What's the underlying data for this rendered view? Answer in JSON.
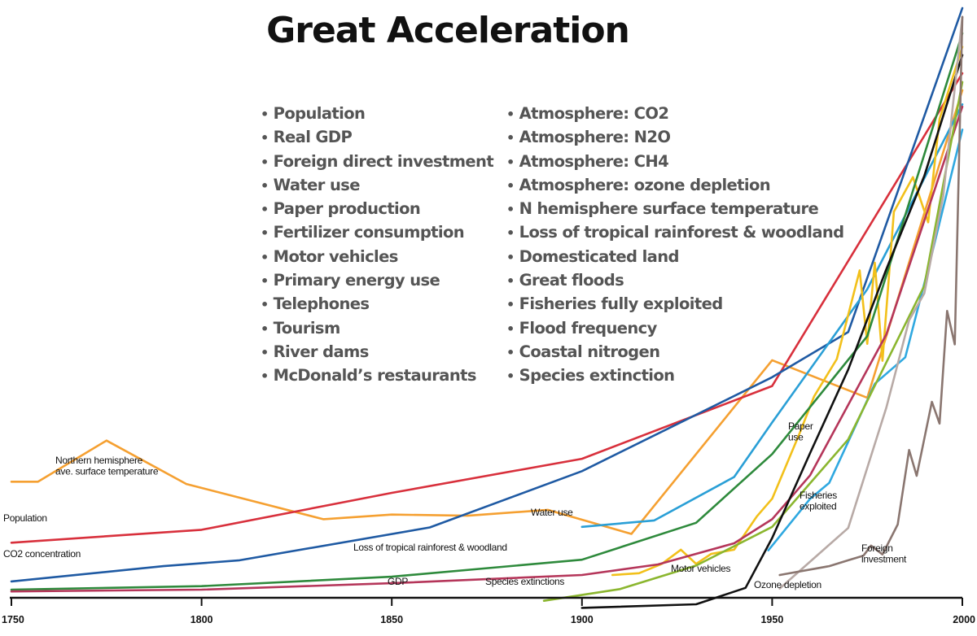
{
  "chart_data": {
    "type": "line",
    "title": "Great Acceleration",
    "indicators_left": [
      "Population",
      "Real GDP",
      "Foreign direct investment",
      "Water use",
      "Paper production",
      "Fertilizer consumption",
      "Motor vehicles",
      "Primary energy use",
      "Telephones",
      "Tourism",
      "River dams",
      "McDonald’s restaurants"
    ],
    "indicators_right": [
      "Atmosphere: CO2",
      "Atmosphere: N2O",
      "Atmosphere: CH4",
      "Atmosphere: ozone depletion",
      "N hemisphere surface temperature",
      "Loss of tropical rainforest & woodland",
      "Domesticated land",
      "Great floods",
      "Fisheries fully exploited",
      "Flood frequency",
      "Coastal nitrogen",
      "Species extinction"
    ],
    "x_ticks": [
      1750,
      1800,
      1850,
      1900,
      1950,
      2000
    ],
    "xlim": [
      1750,
      2000
    ],
    "ylim": [
      0,
      100
    ],
    "grid": false,
    "series": [
      {
        "name": "Northern hemisphere ave. surface temperature",
        "color": "#f5a031",
        "x": [
          1750,
          1757,
          1775,
          1796,
          1832,
          1850,
          1870,
          1891,
          1913,
          1950,
          1975,
          2000
        ],
        "y": [
          19.3,
          19.3,
          26.3,
          18.9,
          12.9,
          13.7,
          13.5,
          14.5,
          10.4,
          40.0,
          33.6,
          86.0
        ],
        "label_lines": [
          "Northern hemisphere",
          "ave. surface temperature"
        ]
      },
      {
        "name": "Population",
        "color": "#d8303c",
        "x": [
          1750,
          1800,
          1850,
          1900,
          1950,
          2000
        ],
        "y": [
          8.9,
          11.1,
          17.4,
          23.2,
          35.6,
          88.9
        ],
        "label_lines": [
          "Population"
        ]
      },
      {
        "name": "CO2 concentration",
        "color": "#1f5aa3",
        "x": [
          1750,
          1790,
          1810,
          1860,
          1900,
          1950,
          1970,
          2000
        ],
        "y": [
          2.3,
          4.9,
          5.9,
          11.5,
          21.1,
          37.1,
          44.8,
          100
        ],
        "label_lines": [
          "CO2 concentration"
        ]
      },
      {
        "name": "Water use",
        "color": "#2a9fd6",
        "x": [
          1900,
          1919,
          1940,
          1950,
          1975,
          2000
        ],
        "y": [
          11.6,
          12.7,
          20.1,
          29.4,
          52.1,
          83.6
        ],
        "label_lines": [
          "Water use"
        ]
      },
      {
        "name": "Paper use",
        "color": "#f2c01a",
        "x": [
          1908,
          1915,
          1921,
          1926,
          1930,
          1934,
          1940,
          1946,
          1950,
          1957,
          1961,
          1967,
          1973,
          1975,
          1977,
          1979,
          1982,
          1987,
          1991,
          1994,
          2000
        ],
        "y": [
          3.4,
          3.7,
          5.3,
          7.7,
          5.3,
          7.0,
          7.7,
          13.4,
          16.4,
          27.2,
          33.8,
          40.2,
          55.3,
          42.8,
          56.6,
          39.9,
          65.3,
          71.2,
          63.5,
          81.1,
          93.4
        ],
        "label_lines": [
          "Paper",
          "use"
        ]
      },
      {
        "name": "Fisheries exploited",
        "color": "#2fa8e0",
        "x": [
          1949,
          1960,
          1965,
          1970,
          1977,
          1985,
          1992,
          2000
        ],
        "y": [
          7.6,
          16.4,
          19.1,
          26.1,
          36.0,
          40.5,
          58.1,
          79.3
        ],
        "label_lines": [
          "Fisheries",
          "exploited"
        ]
      },
      {
        "name": "Loss of tropical rainforest & woodland",
        "color": "#2e8a3c",
        "x": [
          1750,
          1800,
          1850,
          1900,
          1930,
          1950,
          1975,
          2000
        ],
        "y": [
          0.9,
          1.5,
          3.1,
          6.0,
          12.3,
          24.0,
          44.1,
          95.7
        ],
        "label_lines": [
          "Loss of tropical rainforest & woodland"
        ]
      },
      {
        "name": "GDP",
        "color": "#b5365a",
        "x": [
          1750,
          1800,
          1850,
          1900,
          1920,
          1940,
          1950,
          1960,
          1980,
          2000
        ],
        "y": [
          0.6,
          0.9,
          2.0,
          3.4,
          5.2,
          8.8,
          12.9,
          20.4,
          44.4,
          83.2
        ],
        "label_lines": [
          "GDP"
        ]
      },
      {
        "name": "Species extinctions",
        "color": "#8bb62f",
        "x": [
          1890,
          1910,
          1930,
          1950,
          1970,
          1990,
          2000
        ],
        "y": [
          -1.0,
          1.0,
          5.0,
          11.6,
          26.5,
          52.7,
          87.4
        ],
        "label_lines": [
          "Species extinctions"
        ]
      },
      {
        "name": "Motor vehicles",
        "color": "#111111",
        "x": [
          1900,
          1930,
          1943,
          1950,
          1960,
          1970,
          1980,
          1990,
          2000
        ],
        "y": [
          -2.2,
          -1.6,
          1.2,
          9.7,
          24.2,
          38.4,
          55.5,
          71.4,
          92.0
        ],
        "label_lines": [
          "Motor vehicles"
        ]
      },
      {
        "name": "Ozone depletion",
        "color": "#b8aaa6",
        "x": [
          1952,
          1970,
          1980,
          1986,
          1990,
          1995,
          2000
        ],
        "y": [
          1.1,
          11.4,
          31.9,
          46.8,
          51.4,
          68.1,
          98.5
        ],
        "label_lines": [
          "Ozone depletion"
        ]
      },
      {
        "name": "Foreign investment",
        "color": "#8a7670",
        "x": [
          1952,
          1965,
          1970,
          1974,
          1976,
          1979,
          1983,
          1986,
          1988,
          1992,
          1994,
          1996,
          1998,
          2000
        ],
        "y": [
          3.4,
          4.9,
          5.9,
          6.7,
          8.4,
          6.9,
          12.0,
          24.7,
          20.3,
          32.9,
          29.2,
          48.4,
          42.7,
          98.5
        ],
        "label_lines": [
          "Foreign",
          "investment"
        ]
      }
    ]
  }
}
